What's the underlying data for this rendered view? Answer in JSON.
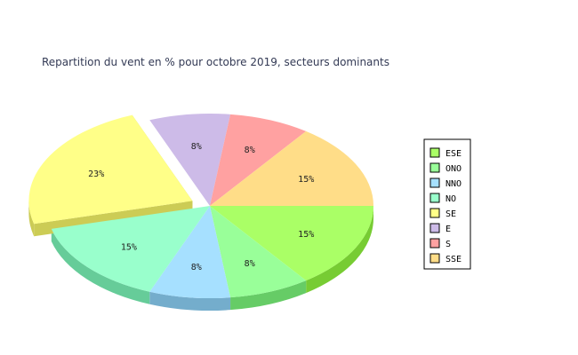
{
  "chart_data": {
    "type": "pie",
    "title": "Repartition du vent en % pour octobre 2019, secteurs dominants",
    "style": "3d-exploded",
    "legend_position": "right",
    "slices": [
      {
        "name": "ESE",
        "value": 15,
        "label": "15%",
        "color": "#aaff66",
        "side": "#77cc33",
        "explode": 0
      },
      {
        "name": "ONO",
        "value": 8,
        "label": "8%",
        "color": "#99ff99",
        "side": "#66cc66",
        "explode": 0
      },
      {
        "name": "NNO",
        "value": 8,
        "label": "8%",
        "color": "#a6e0ff",
        "side": "#74adcc",
        "explode": 0
      },
      {
        "name": "NO",
        "value": 15,
        "label": "15%",
        "color": "#99ffcc",
        "side": "#66cc99",
        "explode": 0
      },
      {
        "name": "SE",
        "value": 23,
        "label": "23%",
        "color": "#ffff88",
        "side": "#cccc55",
        "explode": 22
      },
      {
        "name": "E",
        "value": 8,
        "label": "8%",
        "color": "#cdbbe8",
        "side": "#9a88b5",
        "explode": 0
      },
      {
        "name": "S",
        "value": 8,
        "label": "8%",
        "color": "#ffa1a1",
        "side": "#cc6e6e",
        "explode": 0
      },
      {
        "name": "SSE",
        "value": 15,
        "label": "15%",
        "color": "#ffdd88",
        "side": "#ccaa55",
        "explode": 0
      }
    ]
  }
}
